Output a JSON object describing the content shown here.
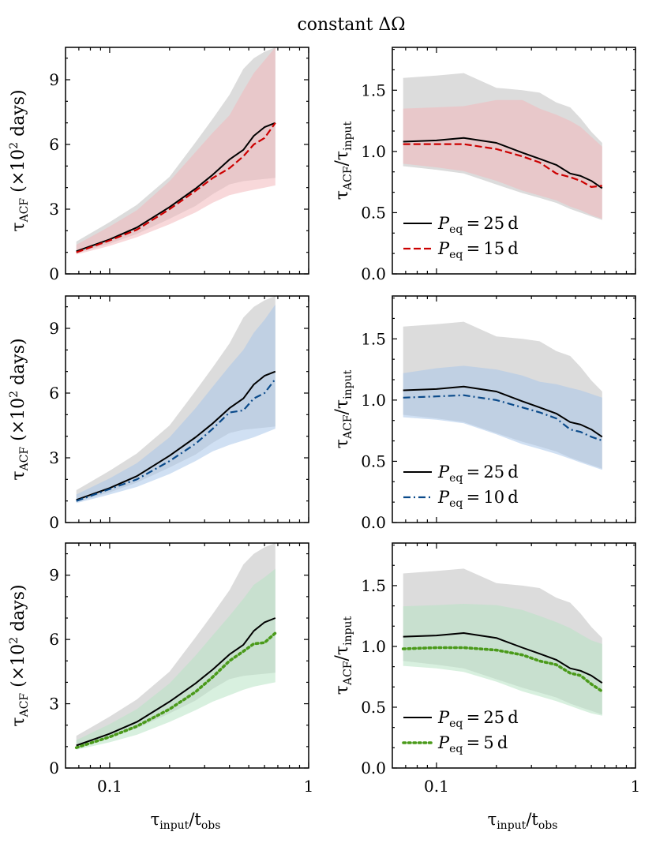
{
  "figure": {
    "title": "constant ΔΩ",
    "x_axis_label": "τinput / tobs",
    "x_tick_labels": [
      "0.1",
      "1"
    ]
  },
  "colors": {
    "reference": "#000000",
    "reference_band": "#dcdcdc",
    "p15": "#cc0000",
    "p15_band": "#f2b8bb",
    "p10": "#0a4a8a",
    "p10_band": "#a9c7ea",
    "p5": "#4a9a1a",
    "p5_band": "#b8e3c4"
  },
  "chart_data": [
    {
      "type": "line",
      "panel": "top-left",
      "xscale": "log",
      "xlim": [
        0.06,
        1
      ],
      "ylim": [
        0,
        10.5
      ],
      "yticks": [
        0,
        3,
        6,
        9
      ],
      "ylabel": "τACF (×10² days)",
      "x": [
        0.068,
        0.1,
        0.137,
        0.2,
        0.27,
        0.33,
        0.4,
        0.47,
        0.53,
        0.6,
        0.68
      ],
      "series": [
        {
          "name": "Peq = 25 d",
          "color_key": "reference",
          "dash": "solid",
          "values": [
            1.05,
            1.6,
            2.15,
            3.1,
            3.95,
            4.6,
            5.3,
            5.75,
            6.4,
            6.8,
            7.0
          ],
          "band_low": [
            0.95,
            1.4,
            1.85,
            2.55,
            3.15,
            3.7,
            4.15,
            4.3,
            4.35,
            4.4,
            4.45
          ],
          "band_high": [
            1.5,
            2.4,
            3.2,
            4.5,
            6.1,
            7.2,
            8.3,
            9.5,
            10.0,
            10.3,
            10.5
          ]
        },
        {
          "name": "Peq = 15 d",
          "color_key": "p15",
          "dash": "dashed",
          "values": [
            1.0,
            1.55,
            2.05,
            3.0,
            3.85,
            4.45,
            4.9,
            5.45,
            6.0,
            6.3,
            7.0
          ],
          "band_low": [
            0.9,
            1.3,
            1.7,
            2.3,
            2.85,
            3.3,
            3.65,
            3.8,
            3.9,
            4.0,
            4.1
          ],
          "band_high": [
            1.35,
            2.2,
            2.95,
            4.3,
            5.65,
            6.55,
            7.35,
            8.5,
            9.3,
            9.9,
            10.5
          ]
        }
      ],
      "legend": null
    },
    {
      "type": "line",
      "panel": "top-right",
      "xscale": "log",
      "xlim": [
        0.06,
        1
      ],
      "ylim": [
        0,
        1.85
      ],
      "yticks": [
        "0.0",
        "0.5",
        "1.0",
        "1.5"
      ],
      "ylabel": "τACF / τinput",
      "x": [
        0.068,
        0.1,
        0.137,
        0.2,
        0.27,
        0.33,
        0.4,
        0.47,
        0.53,
        0.6,
        0.68
      ],
      "series": [
        {
          "name": "Peq = 25 d",
          "color_key": "reference",
          "dash": "solid",
          "values": [
            1.08,
            1.09,
            1.11,
            1.07,
            0.99,
            0.94,
            0.89,
            0.82,
            0.8,
            0.76,
            0.7
          ],
          "band_low": [
            0.88,
            0.85,
            0.82,
            0.73,
            0.66,
            0.62,
            0.58,
            0.53,
            0.5,
            0.47,
            0.44
          ],
          "band_high": [
            1.6,
            1.62,
            1.64,
            1.52,
            1.5,
            1.48,
            1.4,
            1.36,
            1.27,
            1.16,
            1.07
          ]
        },
        {
          "name": "Peq = 15 d",
          "color_key": "p15",
          "dash": "dashed",
          "values": [
            1.06,
            1.06,
            1.06,
            1.02,
            0.96,
            0.91,
            0.82,
            0.79,
            0.76,
            0.71,
            0.72
          ],
          "band_low": [
            0.9,
            0.87,
            0.84,
            0.76,
            0.68,
            0.64,
            0.6,
            0.55,
            0.52,
            0.48,
            0.45
          ],
          "band_high": [
            1.35,
            1.36,
            1.37,
            1.42,
            1.42,
            1.35,
            1.3,
            1.25,
            1.2,
            1.12,
            1.04
          ]
        }
      ],
      "legend": {
        "placement": "lower-left",
        "entries": [
          "Peq = 25 d",
          "Peq = 15 d"
        ]
      }
    },
    {
      "type": "line",
      "panel": "middle-left",
      "xscale": "log",
      "xlim": [
        0.06,
        1
      ],
      "ylim": [
        0,
        10.5
      ],
      "yticks": [
        0,
        3,
        6,
        9
      ],
      "ylabel": "τACF (×10² days)",
      "x": [
        0.068,
        0.1,
        0.137,
        0.2,
        0.27,
        0.33,
        0.4,
        0.47,
        0.53,
        0.6,
        0.68
      ],
      "series": [
        {
          "name": "Peq = 25 d",
          "color_key": "reference",
          "dash": "solid",
          "values": [
            1.05,
            1.6,
            2.15,
            3.1,
            3.95,
            4.6,
            5.3,
            5.75,
            6.4,
            6.8,
            7.0
          ],
          "band_low": [
            0.95,
            1.4,
            1.85,
            2.55,
            3.15,
            3.7,
            4.15,
            4.3,
            4.35,
            4.4,
            4.45
          ],
          "band_high": [
            1.5,
            2.4,
            3.2,
            4.5,
            6.1,
            7.2,
            8.3,
            9.5,
            10.0,
            10.3,
            10.5
          ]
        },
        {
          "name": "Peq = 10 d",
          "color_key": "p10",
          "dash": "dashdot",
          "values": [
            1.0,
            1.55,
            2.0,
            2.85,
            3.65,
            4.35,
            5.1,
            5.2,
            5.75,
            6.0,
            6.65
          ],
          "band_low": [
            0.9,
            1.3,
            1.65,
            2.25,
            2.85,
            3.3,
            3.6,
            3.8,
            3.95,
            4.15,
            4.35
          ],
          "band_high": [
            1.3,
            2.05,
            2.75,
            3.95,
            5.3,
            6.3,
            7.25,
            8.0,
            8.8,
            9.4,
            10.1
          ]
        }
      ],
      "legend": null
    },
    {
      "type": "line",
      "panel": "middle-right",
      "xscale": "log",
      "xlim": [
        0.06,
        1
      ],
      "ylim": [
        0,
        1.85
      ],
      "yticks": [
        "0.0",
        "0.5",
        "1.0",
        "1.5"
      ],
      "ylabel": "τACF / τinput",
      "x": [
        0.068,
        0.1,
        0.137,
        0.2,
        0.27,
        0.33,
        0.4,
        0.47,
        0.53,
        0.6,
        0.68
      ],
      "series": [
        {
          "name": "Peq = 25 d",
          "color_key": "reference",
          "dash": "solid",
          "values": [
            1.08,
            1.09,
            1.11,
            1.07,
            0.99,
            0.94,
            0.89,
            0.82,
            0.8,
            0.76,
            0.7
          ],
          "band_low": [
            0.88,
            0.85,
            0.82,
            0.73,
            0.66,
            0.62,
            0.58,
            0.53,
            0.5,
            0.47,
            0.44
          ],
          "band_high": [
            1.6,
            1.62,
            1.64,
            1.52,
            1.5,
            1.48,
            1.4,
            1.36,
            1.27,
            1.16,
            1.07
          ]
        },
        {
          "name": "Peq = 10 d",
          "color_key": "p10",
          "dash": "dashdot",
          "values": [
            1.02,
            1.03,
            1.04,
            1.0,
            0.94,
            0.9,
            0.85,
            0.76,
            0.74,
            0.7,
            0.67
          ],
          "band_low": [
            0.86,
            0.84,
            0.81,
            0.72,
            0.64,
            0.6,
            0.56,
            0.52,
            0.49,
            0.46,
            0.43
          ],
          "band_high": [
            1.22,
            1.26,
            1.28,
            1.25,
            1.2,
            1.15,
            1.13,
            1.1,
            1.08,
            1.05,
            1.02
          ]
        }
      ],
      "legend": {
        "placement": "lower-left",
        "entries": [
          "Peq = 25 d",
          "Peq = 10 d"
        ]
      }
    },
    {
      "type": "line",
      "panel": "bottom-left",
      "xscale": "log",
      "xlim": [
        0.06,
        1
      ],
      "ylim": [
        0,
        10.5
      ],
      "yticks": [
        0,
        3,
        6,
        9
      ],
      "ylabel": "τACF (×10² days)",
      "x": [
        0.068,
        0.1,
        0.137,
        0.2,
        0.27,
        0.33,
        0.4,
        0.47,
        0.53,
        0.6,
        0.68
      ],
      "series": [
        {
          "name": "Peq = 25 d",
          "color_key": "reference",
          "dash": "solid",
          "values": [
            1.05,
            1.6,
            2.15,
            3.1,
            3.95,
            4.6,
            5.3,
            5.75,
            6.4,
            6.8,
            7.0
          ],
          "band_low": [
            0.95,
            1.4,
            1.85,
            2.55,
            3.15,
            3.7,
            4.15,
            4.3,
            4.35,
            4.4,
            4.45
          ],
          "band_high": [
            1.5,
            2.4,
            3.2,
            4.5,
            6.1,
            7.2,
            8.3,
            9.5,
            10.0,
            10.3,
            10.5
          ]
        },
        {
          "name": "Peq = 5 d",
          "color_key": "p5",
          "dash": "dotted",
          "values": [
            0.95,
            1.45,
            1.95,
            2.75,
            3.55,
            4.25,
            5.0,
            5.45,
            5.8,
            5.85,
            6.3
          ],
          "band_low": [
            0.85,
            1.2,
            1.55,
            2.15,
            2.7,
            3.1,
            3.4,
            3.65,
            3.8,
            3.9,
            4.0
          ],
          "band_high": [
            1.3,
            2.05,
            2.75,
            3.95,
            5.25,
            6.2,
            7.1,
            7.9,
            8.55,
            8.9,
            9.3
          ]
        }
      ],
      "legend": null
    },
    {
      "type": "line",
      "panel": "bottom-right",
      "xscale": "log",
      "xlim": [
        0.06,
        1
      ],
      "ylim": [
        0,
        1.85
      ],
      "yticks": [
        "0.0",
        "0.5",
        "1.0",
        "1.5"
      ],
      "ylabel": "τACF / τinput",
      "x": [
        0.068,
        0.1,
        0.137,
        0.2,
        0.27,
        0.33,
        0.4,
        0.47,
        0.53,
        0.6,
        0.68
      ],
      "series": [
        {
          "name": "Peq = 25 d",
          "color_key": "reference",
          "dash": "solid",
          "values": [
            1.08,
            1.09,
            1.11,
            1.07,
            0.99,
            0.94,
            0.89,
            0.82,
            0.8,
            0.76,
            0.7
          ],
          "band_low": [
            0.88,
            0.85,
            0.82,
            0.73,
            0.66,
            0.62,
            0.58,
            0.53,
            0.5,
            0.47,
            0.44
          ],
          "band_high": [
            1.6,
            1.62,
            1.64,
            1.52,
            1.5,
            1.48,
            1.4,
            1.36,
            1.27,
            1.16,
            1.07
          ]
        },
        {
          "name": "Peq = 5 d",
          "color_key": "p5",
          "dash": "dotted",
          "values": [
            0.98,
            0.99,
            0.99,
            0.97,
            0.93,
            0.88,
            0.85,
            0.78,
            0.76,
            0.69,
            0.63
          ],
          "band_low": [
            0.84,
            0.82,
            0.79,
            0.71,
            0.63,
            0.59,
            0.55,
            0.51,
            0.48,
            0.45,
            0.43
          ],
          "band_high": [
            1.33,
            1.34,
            1.35,
            1.34,
            1.3,
            1.25,
            1.2,
            1.15,
            1.1,
            1.05,
            1.02
          ]
        }
      ],
      "legend": {
        "placement": "lower-left",
        "entries": [
          "Peq = 25 d",
          "Peq = 5 d"
        ]
      }
    }
  ]
}
